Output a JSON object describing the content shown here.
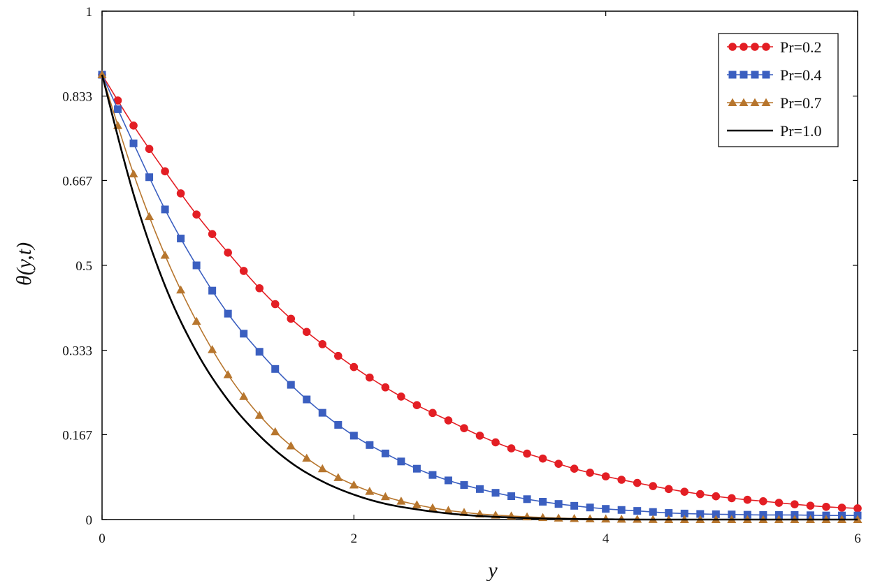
{
  "chart_data": {
    "type": "line",
    "title": "",
    "xlabel": "y",
    "ylabel": "θ(y,t)",
    "xlim": [
      0,
      6
    ],
    "ylim": [
      0,
      1
    ],
    "x_ticks": [
      0,
      2,
      4,
      6
    ],
    "x_tick_labels": [
      "0",
      "2",
      "4",
      "6"
    ],
    "y_ticks": [
      0,
      0.167,
      0.333,
      0.5,
      0.667,
      0.833,
      1
    ],
    "y_tick_labels": [
      "0",
      "0.167",
      "0.333",
      "0.5",
      "0.667",
      "0.833",
      "1"
    ],
    "grid": false,
    "legend_position": "top-right",
    "x": [
      0,
      0.25,
      0.5,
      0.75,
      1,
      1.25,
      1.5,
      1.75,
      2,
      2.25,
      2.5,
      2.75,
      3,
      3.25,
      3.5,
      3.75,
      4,
      4.25,
      4.5,
      4.75,
      5,
      5.25,
      5.5,
      5.75,
      6
    ],
    "series": [
      {
        "name": "Pr=0.2",
        "color": "#e31e24",
        "marker": "circle",
        "values": [
          0.875,
          0.775,
          0.685,
          0.6,
          0.525,
          0.455,
          0.395,
          0.345,
          0.3,
          0.26,
          0.225,
          0.195,
          0.165,
          0.14,
          0.12,
          0.1,
          0.085,
          0.072,
          0.06,
          0.05,
          0.042,
          0.036,
          0.03,
          0.025,
          0.022
        ]
      },
      {
        "name": "Pr=0.4",
        "color": "#3b5fc0",
        "marker": "square",
        "values": [
          0.875,
          0.74,
          0.61,
          0.5,
          0.405,
          0.33,
          0.265,
          0.21,
          0.165,
          0.13,
          0.1,
          0.077,
          0.06,
          0.046,
          0.035,
          0.027,
          0.021,
          0.017,
          0.013,
          0.011,
          0.01,
          0.009,
          0.009,
          0.008,
          0.008
        ]
      },
      {
        "name": "Pr=0.7",
        "color": "#b7762e",
        "marker": "triangle",
        "values": [
          0.875,
          0.68,
          0.52,
          0.39,
          0.285,
          0.205,
          0.145,
          0.1,
          0.068,
          0.045,
          0.029,
          0.018,
          0.011,
          0.007,
          0.004,
          0.002,
          0.001,
          0.0005,
          0,
          0,
          0,
          0,
          0,
          0,
          0
        ]
      },
      {
        "name": "Pr=1.0",
        "color": "#000000",
        "marker": "none",
        "values": [
          0.875,
          0.64,
          0.46,
          0.33,
          0.235,
          0.165,
          0.112,
          0.075,
          0.049,
          0.031,
          0.02,
          0.012,
          0.007,
          0.004,
          0.002,
          0.001,
          0.0005,
          0,
          0,
          0,
          0,
          0,
          0,
          0,
          0
        ]
      }
    ]
  }
}
